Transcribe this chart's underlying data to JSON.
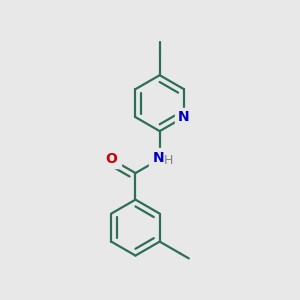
{
  "background_color": "#e8e8e8",
  "bond_color": "#2d6e5a",
  "bond_width": 1.6,
  "atom_colors": {
    "N": "#0000cc",
    "O": "#cc0000",
    "H": "#808080"
  },
  "font_size_atom": 10,
  "font_size_h": 9
}
